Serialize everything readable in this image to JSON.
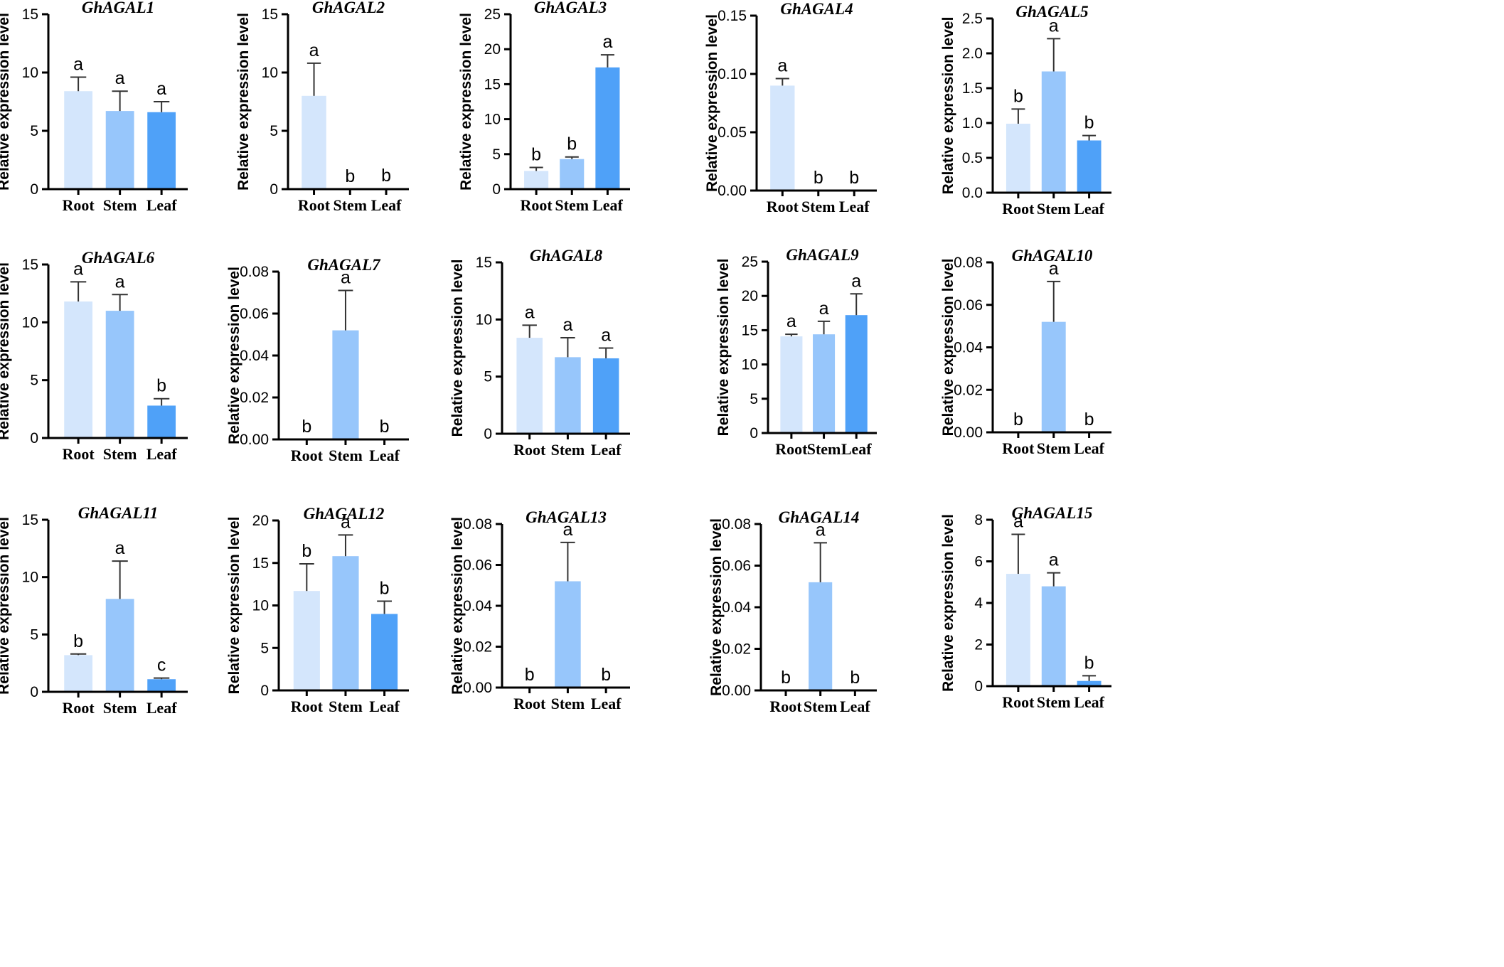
{
  "colors": {
    "root": "#d4e6fc",
    "stem": "#97c6fb",
    "leaf": "#4fa1f8"
  },
  "chart_data": [
    {
      "type": "bar",
      "title": "GhAGAL1",
      "ylabel": "Relative expression level",
      "categories": [
        "Root",
        "Stem",
        "Leaf"
      ],
      "values": [
        8.4,
        6.7,
        6.6
      ],
      "errors": [
        1.2,
        1.7,
        0.9
      ],
      "letters": [
        "a",
        "a",
        "a"
      ],
      "ylim": [
        0,
        15
      ],
      "yticks": [
        "0",
        "5",
        "10",
        "15"
      ]
    },
    {
      "type": "bar",
      "title": "GhAGAL2",
      "ylabel": "Relative expression level",
      "categories": [
        "Root",
        "Stem",
        "Leaf"
      ],
      "values": [
        8.0,
        0.0,
        0.05
      ],
      "errors": [
        2.8,
        0,
        0
      ],
      "letters": [
        "a",
        "b",
        "b"
      ],
      "ylim": [
        0,
        15
      ],
      "yticks": [
        "0",
        "5",
        "10",
        "15"
      ]
    },
    {
      "type": "bar",
      "title": "GhAGAL3",
      "ylabel": "Relative expression level",
      "categories": [
        "Root",
        "Stem",
        "Leaf"
      ],
      "values": [
        2.6,
        4.3,
        17.4
      ],
      "errors": [
        0.5,
        0.3,
        1.8
      ],
      "letters": [
        "b",
        "b",
        "a"
      ],
      "ylim": [
        0,
        25
      ],
      "yticks": [
        "0",
        "5",
        "10",
        "15",
        "20",
        "25"
      ]
    },
    {
      "type": "bar",
      "title": "GhAGAL4",
      "ylabel": "Relative expression level",
      "categories": [
        "Root",
        "Stem",
        "Leaf"
      ],
      "values": [
        0.09,
        0,
        0
      ],
      "errors": [
        0.006,
        0,
        0
      ],
      "letters": [
        "a",
        "b",
        "b"
      ],
      "ylim": [
        0,
        0.15
      ],
      "yticks": [
        "0.00",
        "0.05",
        "0.10",
        "0.15"
      ]
    },
    {
      "type": "bar",
      "title": "GhAGAL5",
      "ylabel": "Relative expression level",
      "categories": [
        "Root",
        "Stem",
        "Leaf"
      ],
      "values": [
        0.99,
        1.74,
        0.75
      ],
      "errors": [
        0.21,
        0.47,
        0.07
      ],
      "letters": [
        "b",
        "a",
        "b"
      ],
      "ylim": [
        0,
        2.5
      ],
      "yticks": [
        "0.0",
        "0.5",
        "1.0",
        "1.5",
        "2.0",
        "2.5"
      ]
    },
    {
      "type": "bar",
      "title": "GhAGAL6",
      "ylabel": "Relative expression level",
      "categories": [
        "Root",
        "Stem",
        "Leaf"
      ],
      "values": [
        11.8,
        11.0,
        2.8
      ],
      "errors": [
        1.7,
        1.4,
        0.6
      ],
      "letters": [
        "a",
        "a",
        "b"
      ],
      "ylim": [
        0,
        15
      ],
      "yticks": [
        "0",
        "5",
        "10",
        "15"
      ]
    },
    {
      "type": "bar",
      "title": "GhAGAL7",
      "ylabel": "Relative expression level",
      "categories": [
        "Root",
        "Stem",
        "Leaf"
      ],
      "values": [
        0,
        0.052,
        0
      ],
      "errors": [
        0,
        0.019,
        0
      ],
      "letters": [
        "b",
        "a",
        "b"
      ],
      "ylim": [
        0,
        0.08
      ],
      "yticks": [
        "0.00",
        "0.02",
        "0.04",
        "0.06",
        "0.08"
      ]
    },
    {
      "type": "bar",
      "title": "GhAGAL8",
      "ylabel": "Relative expression level",
      "categories": [
        "Root",
        "Stem",
        "Leaf"
      ],
      "values": [
        8.4,
        6.7,
        6.6
      ],
      "errors": [
        1.1,
        1.7,
        0.9
      ],
      "letters": [
        "a",
        "a",
        "a"
      ],
      "ylim": [
        0,
        15
      ],
      "yticks": [
        "0",
        "5",
        "10",
        "15"
      ]
    },
    {
      "type": "bar",
      "title": "GhAGAL9",
      "ylabel": "Relative expression level",
      "categories": [
        "Root",
        "Stem",
        "Leaf"
      ],
      "values": [
        14.1,
        14.4,
        17.2
      ],
      "errors": [
        0.3,
        1.9,
        3.1
      ],
      "letters": [
        "a",
        "a",
        "a"
      ],
      "ylim": [
        0,
        25
      ],
      "yticks": [
        "0",
        "5",
        "10",
        "15",
        "20",
        "25"
      ]
    },
    {
      "type": "bar",
      "title": "GhAGAL10",
      "ylabel": "Relative expression level",
      "categories": [
        "Root",
        "Stem",
        "Leaf"
      ],
      "values": [
        0,
        0.052,
        0
      ],
      "errors": [
        0,
        0.019,
        0
      ],
      "letters": [
        "b",
        "a",
        "b"
      ],
      "ylim": [
        0,
        0.08
      ],
      "yticks": [
        "0.00",
        "0.02",
        "0.04",
        "0.06",
        "0.08"
      ]
    },
    {
      "type": "bar",
      "title": "GhAGAL11",
      "ylabel": "Relative expression level",
      "categories": [
        "Root",
        "Stem",
        "Leaf"
      ],
      "values": [
        3.2,
        8.1,
        1.1
      ],
      "errors": [
        0.1,
        3.3,
        0.1
      ],
      "letters": [
        "b",
        "a",
        "c"
      ],
      "ylim": [
        0,
        15
      ],
      "yticks": [
        "0",
        "5",
        "10",
        "15"
      ]
    },
    {
      "type": "bar",
      "title": "GhAGAL12",
      "ylabel": "Relative expression level",
      "categories": [
        "Root",
        "Stem",
        "Leaf"
      ],
      "values": [
        11.7,
        15.8,
        9.0
      ],
      "errors": [
        3.2,
        2.5,
        1.5
      ],
      "letters": [
        "b",
        "a",
        "b"
      ],
      "ylim": [
        0,
        20
      ],
      "yticks": [
        "0",
        "5",
        "10",
        "15",
        "20"
      ]
    },
    {
      "type": "bar",
      "title": "GhAGAL13",
      "ylabel": "Relative expression level",
      "categories": [
        "Root",
        "Stem",
        "Leaf"
      ],
      "values": [
        0,
        0.052,
        0
      ],
      "errors": [
        0,
        0.019,
        0
      ],
      "letters": [
        "b",
        "a",
        "b"
      ],
      "ylim": [
        0,
        0.08
      ],
      "yticks": [
        "0.00",
        "0.02",
        "0.04",
        "0.06",
        "0.08"
      ]
    },
    {
      "type": "bar",
      "title": "GhAGAL14",
      "ylabel": "Relative expression level",
      "categories": [
        "Root",
        "Stem",
        "Leaf"
      ],
      "values": [
        0,
        0.052,
        0
      ],
      "errors": [
        0,
        0.019,
        0
      ],
      "letters": [
        "b",
        "a",
        "b"
      ],
      "ylim": [
        0,
        0.08
      ],
      "yticks": [
        "0.00",
        "0.02",
        "0.04",
        "0.06",
        "0.08"
      ]
    },
    {
      "type": "bar",
      "title": "GhAGAL15",
      "ylabel": "Relative expression level",
      "categories": [
        "Root",
        "Stem",
        "Leaf"
      ],
      "values": [
        5.4,
        4.8,
        0.25
      ],
      "errors": [
        1.9,
        0.65,
        0.25
      ],
      "letters": [
        "a",
        "a",
        "b"
      ],
      "ylim": [
        0,
        8
      ],
      "yticks": [
        "0",
        "2",
        "4",
        "6",
        "8"
      ]
    }
  ]
}
